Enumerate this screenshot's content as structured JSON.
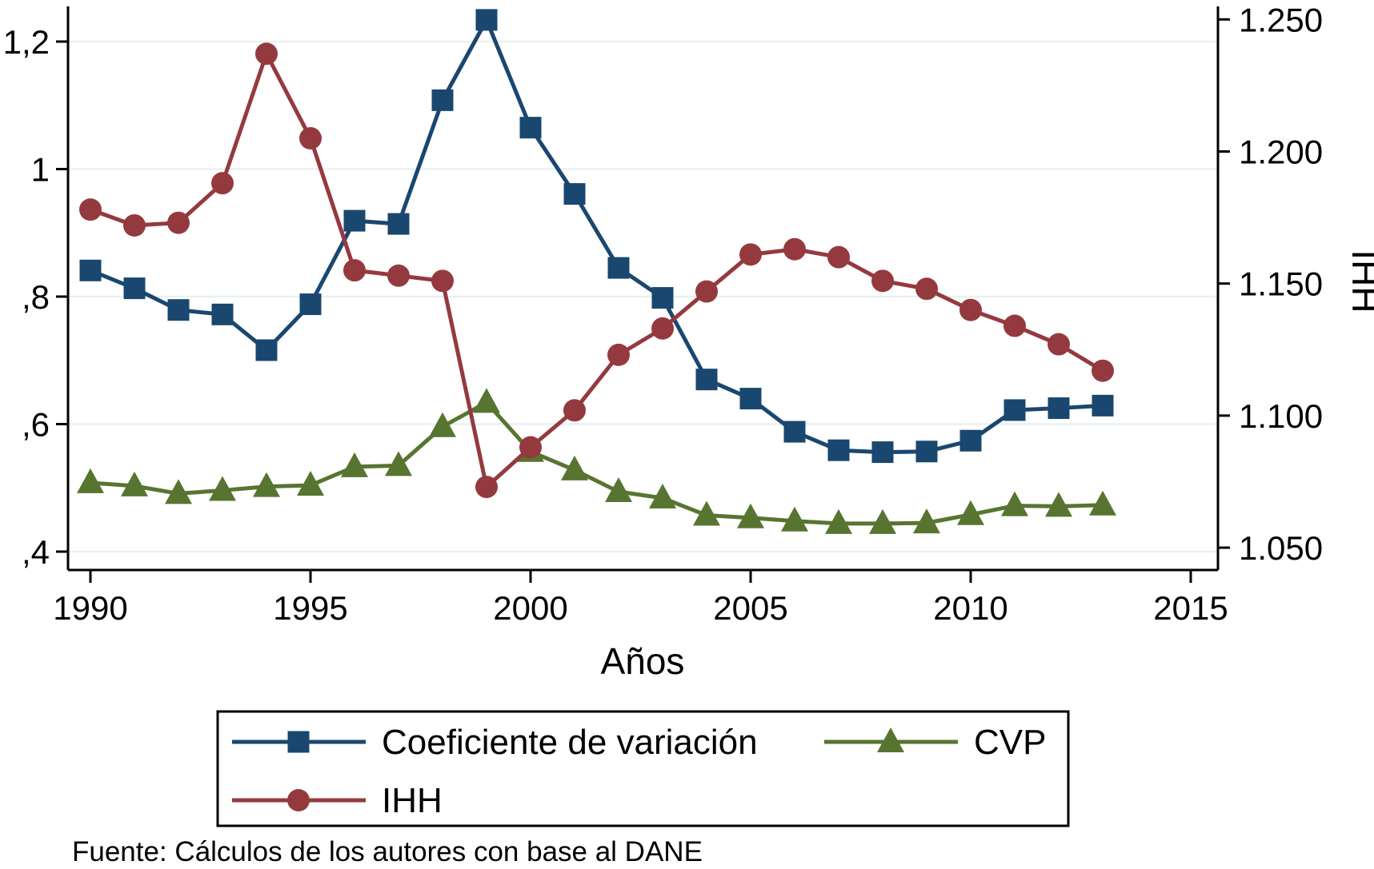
{
  "source_note": "Fuente: Cálculos de los autores con base al DANE",
  "colors": {
    "navy": "#1a476f",
    "maroon": "#943a3f",
    "green": "#577530",
    "gridline": "#e8f1f2",
    "axis": "#000000",
    "background": "#ffffff"
  },
  "chart_data": {
    "type": "line",
    "title": "",
    "xlabel": "Años",
    "ylabel_right": "IHH",
    "grid": true,
    "legend_position": "bottom",
    "x": [
      1990,
      1991,
      1992,
      1993,
      1994,
      1995,
      1996,
      1997,
      1998,
      1999,
      2000,
      2001,
      2002,
      2003,
      2004,
      2005,
      2006,
      2007,
      2008,
      2009,
      2010,
      2011,
      2012,
      2013
    ],
    "x_ticks": {
      "values": [
        1990,
        1995,
        2000,
        2005,
        2010,
        2015
      ],
      "labels": [
        "1990",
        "1995",
        "2000",
        "2005",
        "2010",
        "2015"
      ]
    },
    "y_left_ticks": {
      "values": [
        1.2,
        1.0,
        0.8,
        0.6,
        0.4
      ],
      "labels": [
        "1,2",
        "1",
        ",8",
        ",6",
        ",4"
      ]
    },
    "y_right_ticks": {
      "values": [
        1.25,
        1.2,
        1.15,
        1.1,
        1.05
      ],
      "labels": [
        "1.250",
        "1.200",
        "1.150",
        "1.100",
        "1.050"
      ]
    },
    "y_left_range": [
      0.371,
      1.255
    ],
    "y_right_range": [
      1.041,
      1.255
    ],
    "series": [
      {
        "name": "Coeficiente de variación",
        "axis": "left",
        "marker": "square",
        "color_key": "navy",
        "values": [
          0.841,
          0.813,
          0.779,
          0.772,
          0.716,
          0.788,
          0.919,
          0.914,
          1.108,
          1.234,
          1.065,
          0.961,
          0.845,
          0.798,
          0.67,
          0.64,
          0.588,
          0.559,
          0.556,
          0.557,
          0.574,
          0.622,
          0.625,
          0.629
        ]
      },
      {
        "name": "CVP",
        "axis": "left",
        "marker": "triangle",
        "color_key": "green",
        "values": [
          0.508,
          0.503,
          0.491,
          0.496,
          0.502,
          0.504,
          0.533,
          0.535,
          0.596,
          0.634,
          0.557,
          0.528,
          0.494,
          0.484,
          0.457,
          0.453,
          0.448,
          0.444,
          0.444,
          0.445,
          0.458,
          0.472,
          0.471,
          0.473
        ]
      },
      {
        "name": "IHH",
        "axis": "right",
        "marker": "circle",
        "color_key": "maroon",
        "values": [
          1.178,
          1.172,
          1.173,
          1.188,
          1.237,
          1.205,
          1.155,
          1.153,
          1.151,
          1.073,
          1.088,
          1.102,
          1.123,
          1.133,
          1.147,
          1.161,
          1.163,
          1.16,
          1.151,
          1.148,
          1.14,
          1.134,
          1.127,
          1.117
        ]
      }
    ]
  }
}
